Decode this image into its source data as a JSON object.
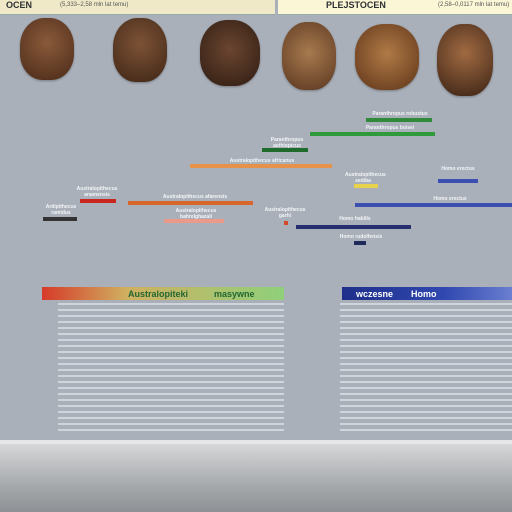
{
  "header": {
    "left_era": "OCEN",
    "left_range": "(5,333–2,58 mln lat temu)",
    "right_era": "PLEJSTOCEN",
    "right_range": "(2,58–0,0117 mln lat temu)"
  },
  "faces": [
    {
      "color": "#6b4026"
    },
    {
      "color": "#5a3a26"
    },
    {
      "color": "#4a3020"
    },
    {
      "color": "#7a5030"
    },
    {
      "color": "#8a5a32"
    },
    {
      "color": "#5f3b24"
    }
  ],
  "timeline": [
    {
      "label": "Paranthropus robustus",
      "color": "#2f8a3a"
    },
    {
      "label": "Paranthropus boisei",
      "color": "#2e9a3c"
    },
    {
      "label": "Paranthropus aethiopicus",
      "color": "#1e6b2c"
    },
    {
      "label": "Australopithecus africanus",
      "color": "#e6924b"
    },
    {
      "label": "Homo erectus",
      "color": "#3a4fb0"
    },
    {
      "label": "Australopithecus sediba",
      "color": "#e8d24a"
    },
    {
      "label": "Australopithecus anamensis",
      "color": "#c8261e"
    },
    {
      "label": "Australopithecus afarensis",
      "color": "#d8652a"
    },
    {
      "label": "Ardipithecus ramidus",
      "color": "#333333"
    },
    {
      "label": "Australopithecus bahrelghazali",
      "color": "#e99a8a"
    },
    {
      "label": "Australopithecus garhi",
      "color": "#d24a2a"
    },
    {
      "label": "Homo habilis",
      "color": "#26306e"
    },
    {
      "label": "Homo rudolfensis",
      "color": "#1f2a5a"
    }
  ],
  "sections": {
    "left_title": "Australopiteki",
    "left_suffix": "masywne",
    "right_prefix": "wczesne",
    "right_title": "Homo"
  },
  "colors": {
    "left_gradient": "#d63a2a",
    "right_gradient": "#2c3f9a"
  }
}
